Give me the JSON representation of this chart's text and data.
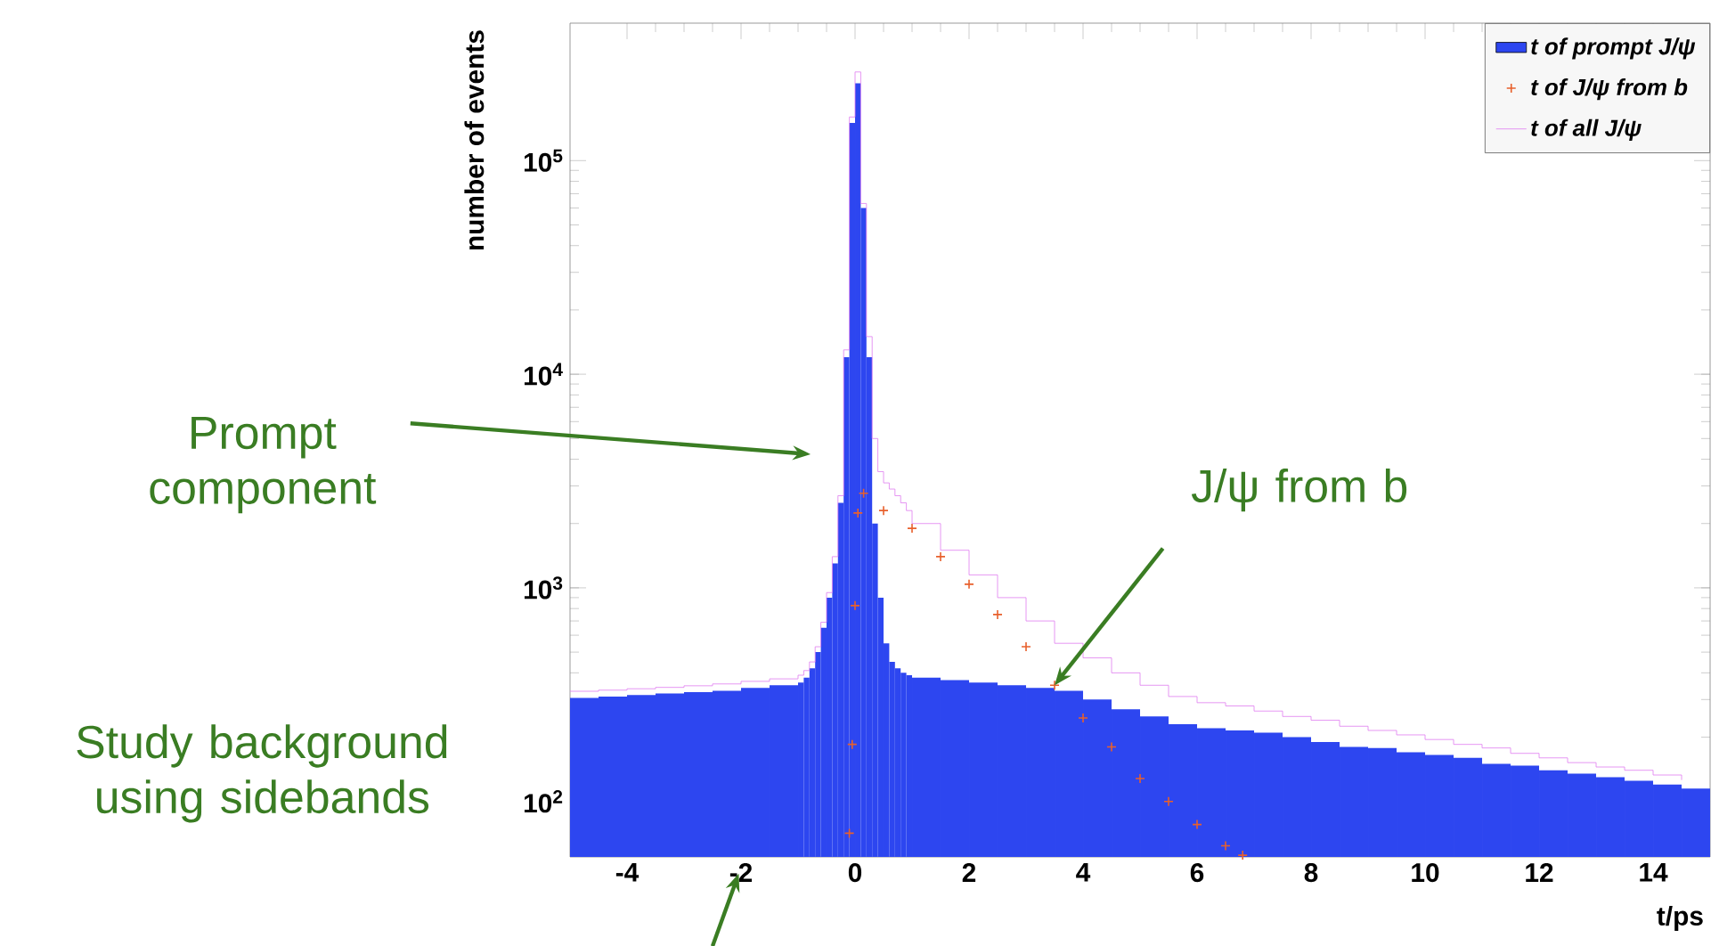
{
  "chart_data": {
    "type": "histogram",
    "bins": [
      -5,
      -4.5,
      -4,
      -3.5,
      -3,
      -2.5,
      -2,
      -1.5,
      -1,
      -0.9,
      -0.8,
      -0.7,
      -0.6,
      -0.5,
      -0.4,
      -0.3,
      -0.2,
      -0.1,
      0,
      0.1,
      0.2,
      0.3,
      0.4,
      0.5,
      0.6,
      0.7,
      0.8,
      0.9,
      1,
      1.5,
      2,
      2.5,
      3,
      3.5,
      4,
      4.5,
      5,
      5.5,
      6,
      6.5,
      7,
      7.5,
      8,
      8.5,
      9,
      9.5,
      10,
      10.5,
      11,
      11.5,
      12,
      12.5,
      13,
      13.5,
      14,
      14.5,
      15
    ],
    "series": [
      {
        "name": "t of prompt J/ψ",
        "color": "#2d46f0",
        "values": [
          305,
          310,
          315,
          320,
          325,
          330,
          340,
          350,
          360,
          380,
          420,
          500,
          650,
          900,
          1300,
          2500,
          12000,
          150000,
          230000,
          60000,
          12000,
          2000,
          900,
          550,
          450,
          420,
          400,
          390,
          380,
          370,
          360,
          350,
          340,
          330,
          300,
          270,
          250,
          230,
          220,
          215,
          210,
          200,
          190,
          180,
          178,
          170,
          165,
          160,
          150,
          147,
          140,
          135,
          130,
          125,
          120,
          115
        ]
      },
      {
        "name": "t of J/ψ from b",
        "type": "scatter",
        "marker": "cross",
        "color": "#e8602c",
        "x": [
          -0.1,
          -0.05,
          0,
          0.05,
          0.15,
          0.5,
          1,
          1.5,
          2,
          2.5,
          3,
          3.5,
          4,
          4.5,
          5,
          5.5,
          6,
          6.5,
          6.8
        ],
        "values": [
          71,
          185,
          826,
          2240,
          2770,
          2300,
          1900,
          1400,
          1040,
          750,
          530,
          350,
          246,
          180,
          128,
          100,
          78,
          62,
          56
        ]
      },
      {
        "name": "t of all J/ψ",
        "type": "step",
        "color": "#e07cf0",
        "x": [
          -5,
          -4.5,
          -4,
          -3.5,
          -3,
          -2.5,
          -2,
          -1.5,
          -1,
          -0.9,
          -0.8,
          -0.7,
          -0.6,
          -0.5,
          -0.4,
          -0.3,
          -0.2,
          -0.1,
          0,
          0.1,
          0.2,
          0.3,
          0.4,
          0.5,
          0.6,
          0.7,
          0.8,
          0.9,
          1,
          1.5,
          2,
          2.5,
          3,
          3.5,
          4,
          4.5,
          5,
          5.5,
          6,
          6.5,
          7,
          7.5,
          8,
          8.5,
          9,
          9.5,
          10,
          10.5,
          11,
          11.5,
          12,
          12.5,
          13,
          13.5,
          14,
          14.5
        ],
        "values": [
          328,
          332,
          337,
          342,
          348,
          355,
          365,
          375,
          390,
          410,
          450,
          530,
          690,
          950,
          1400,
          2700,
          13000,
          160000,
          260000,
          63000,
          15000,
          5000,
          3500,
          3100,
          2900,
          2700,
          2500,
          2300,
          2000,
          1500,
          1150,
          900,
          700,
          550,
          470,
          400,
          350,
          310,
          290,
          280,
          265,
          250,
          240,
          225,
          215,
          205,
          195,
          185,
          178,
          168,
          160,
          152,
          145,
          140,
          133,
          126
        ]
      }
    ],
    "xlim": [
      -5,
      15
    ],
    "ylim": [
      55,
      440000
    ],
    "log": "y",
    "xticks": [
      -4,
      -2,
      0,
      2,
      4,
      6,
      8,
      10,
      12,
      14
    ],
    "yticks": [
      {
        "value": 100,
        "label": "10$^{2}$"
      },
      {
        "value": 1000,
        "label": "10$^{3}$"
      },
      {
        "value": 10000,
        "label": "10$^{4}$"
      },
      {
        "value": 100000,
        "label": "10$^{5}$"
      }
    ],
    "xlabel": "t/ps",
    "ylabel": "number of events",
    "legend": "top right",
    "annotations": [
      "Prompt component",
      {
        "text": "J/ψ from b",
        "x": 3.5,
        "y": 350
      },
      "Study background using sidebands"
    ]
  }
}
